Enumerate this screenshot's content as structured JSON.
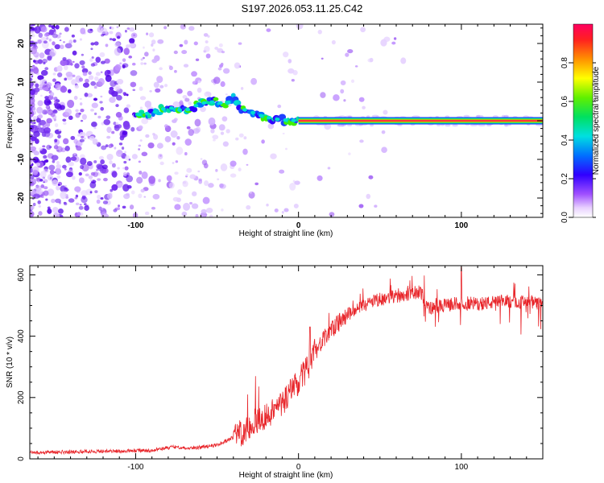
{
  "chart_data": [
    {
      "type": "heatmap",
      "title": "S197.2026.053.11.25.C42",
      "xlabel": "Height of straight line (km)",
      "ylabel": "Frequency (Hz)",
      "xlim": [
        -165,
        150
      ],
      "ylim": [
        -25,
        25
      ],
      "xticks": [
        -100,
        0,
        100
      ],
      "xtick_labels": [
        "-100",
        "0",
        "100"
      ],
      "yticks": [
        -20,
        -10,
        0,
        10,
        20
      ],
      "ytick_labels": [
        "-20",
        "-10",
        "0",
        "10",
        "20"
      ],
      "ridge": {
        "description": "Doppler ridge of normalized spectral amplitude",
        "x": [
          -100,
          -90,
          -80,
          -70,
          -60,
          -50,
          -45,
          -40,
          -35,
          -30,
          -25,
          -20,
          -15,
          -10,
          -5,
          0,
          150
        ],
        "y": [
          1.5,
          2,
          3.5,
          2.5,
          4.5,
          5,
          4,
          6,
          3,
          2.5,
          1.5,
          1,
          0.5,
          0.2,
          0.1,
          0,
          0
        ]
      },
      "colorbar": {
        "label": "Normalized spectral amplitude",
        "range": [
          0,
          1
        ],
        "ticks": [
          0.0,
          0.2,
          0.4,
          0.6,
          0.8
        ],
        "tick_labels": [
          "0.0",
          "0.2",
          "0.4",
          "0.6",
          "0.8"
        ]
      }
    },
    {
      "type": "line",
      "xlabel": "Height of straight line (km)",
      "ylabel": "SNR (10 * v/v)",
      "xlim": [
        -165,
        150
      ],
      "ylim": [
        0,
        630
      ],
      "xticks": [
        -100,
        0,
        100
      ],
      "xtick_labels": [
        "-100",
        "0",
        "100"
      ],
      "yticks": [
        0,
        200,
        400,
        600
      ],
      "ytick_labels": [
        "0",
        "200",
        "400",
        "600"
      ],
      "series": [
        {
          "name": "SNR",
          "color": "#e8252a",
          "x": [
            -165,
            -150,
            -130,
            -110,
            -90,
            -75,
            -70,
            -60,
            -50,
            -40,
            -30,
            -20,
            -10,
            -5,
            0,
            5,
            10,
            20,
            30,
            40,
            50,
            60,
            70,
            75,
            80,
            90,
            100,
            110,
            120,
            130,
            140,
            150
          ],
          "y": [
            20,
            22,
            24,
            25,
            28,
            40,
            35,
            38,
            45,
            70,
            100,
            140,
            180,
            220,
            250,
            290,
            350,
            420,
            470,
            500,
            520,
            530,
            540,
            545,
            490,
            500,
            510,
            505,
            510,
            515,
            510,
            505
          ]
        }
      ]
    }
  ]
}
